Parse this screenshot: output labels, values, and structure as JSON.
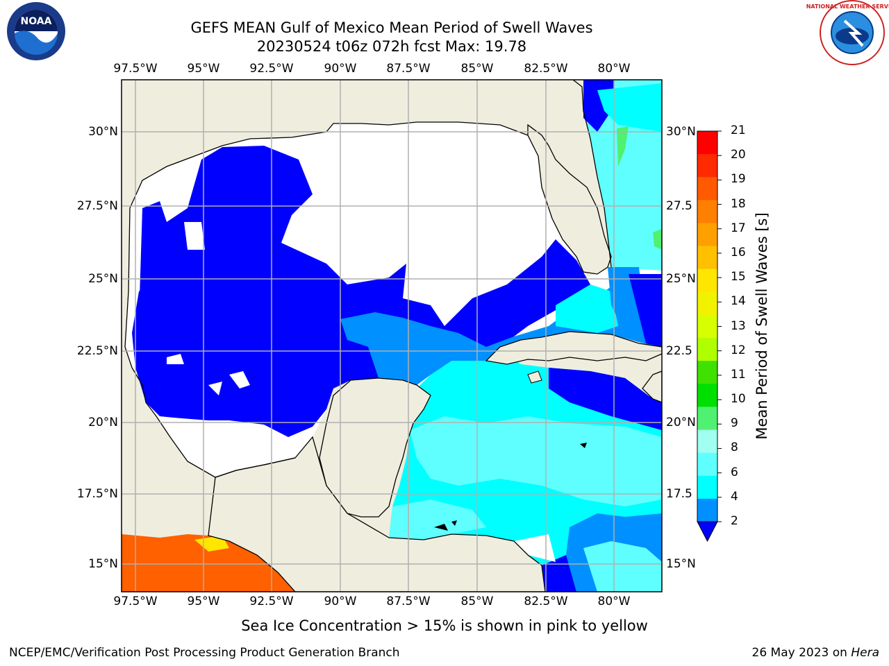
{
  "header": {
    "title_line1": "GEFS MEAN Gulf of Mexico Mean Period of Swell Waves",
    "title_line2": "20230524 t06z 072h fcst   Max: 19.78"
  },
  "logos": {
    "left": "NOAA",
    "right": "NATIONAL WEATHER SERVICE"
  },
  "axes": {
    "lon_ticks": [
      "97.5°W",
      "95°W",
      "92.5°W",
      "90°W",
      "87.5°W",
      "85°W",
      "82.5°W",
      "80°W"
    ],
    "lat_ticks_left": [
      "30°N",
      "27.5°N",
      "25°N",
      "22.5°N",
      "20°N",
      "17.5°N",
      "15°N"
    ],
    "lat_ticks_right": [
      "30°N",
      "27.5",
      "25°N",
      "22.5",
      "20°N",
      "17.5",
      "15°N"
    ]
  },
  "colorbar": {
    "label": "Mean Period of Swell Waves [s]",
    "ticks": [
      "21",
      "20",
      "19",
      "18",
      "17",
      "16",
      "15",
      "14",
      "13",
      "12",
      "11",
      "10",
      "9",
      "8",
      "6",
      "4",
      "2"
    ],
    "colors": [
      "#ff0000",
      "#ff2a00",
      "#ff5a00",
      "#ff8000",
      "#ffa000",
      "#ffc000",
      "#ffe600",
      "#f2f200",
      "#d8ff00",
      "#b0ff00",
      "#40e000",
      "#00e000",
      "#50f070",
      "#a0fff0",
      "#60ffff",
      "#00ffff",
      "#0090ff"
    ],
    "under_color": "#0000ff"
  },
  "map_colors": {
    "land": "#efedde",
    "no_data": "#ffffff",
    "deep_blue": "#0000ff",
    "mid_blue": "#0090ff",
    "cyan": "#00ffff",
    "light_cyan": "#60ffff",
    "green": "#50f070",
    "ice_orange": "#ff6000",
    "ice_yellow": "#ffe600"
  },
  "note": "Sea Ice Concentration > 15% is shown in pink to yellow",
  "footer": {
    "left": "NCEP/EMC/Verification Post Processing Product Generation Branch",
    "right_date": "26 May 2023 on ",
    "right_host": "Hera"
  }
}
